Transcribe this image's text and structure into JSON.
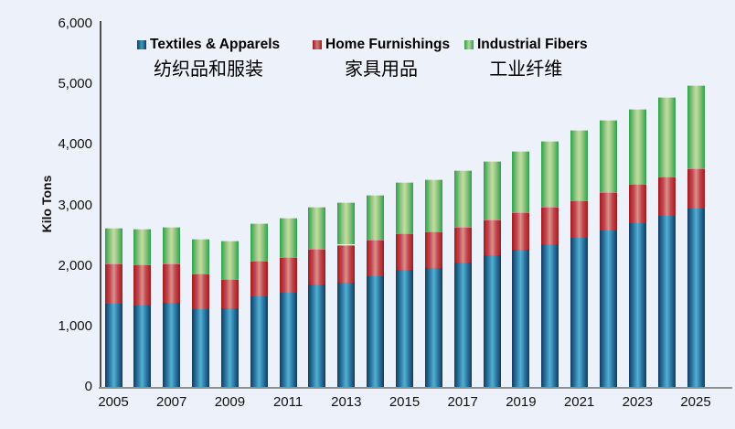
{
  "chart_data": {
    "type": "bar",
    "stacked": true,
    "title": "",
    "ylabel": "Kilo Tons",
    "xlabel": "",
    "grid": false,
    "legend_position": "top",
    "ylim": [
      0,
      6000
    ],
    "yticks": [
      0,
      1000,
      2000,
      3000,
      4000,
      5000,
      6000
    ],
    "ytick_labels": [
      "0",
      "1,000",
      "2,000",
      "3,000",
      "4,000",
      "5,000",
      "6,000"
    ],
    "categories": [
      "2005",
      "2006",
      "2007",
      "2008",
      "2009",
      "2010",
      "2011",
      "2012",
      "2013",
      "2014",
      "2015",
      "2016",
      "2017",
      "2018",
      "2019",
      "2020",
      "2021",
      "2022",
      "2023",
      "2024",
      "2025"
    ],
    "xtick_labels_shown": [
      "2005",
      "2007",
      "2009",
      "2011",
      "2013",
      "2015",
      "2017",
      "2019",
      "2021",
      "2023",
      "2025"
    ],
    "series": [
      {
        "name": "Textiles & Apparels",
        "name_zh": "纺织品和服装",
        "color": "#2d7ca6",
        "values": [
          1370,
          1350,
          1390,
          1290,
          1300,
          1490,
          1560,
          1690,
          1730,
          1830,
          1940,
          1970,
          2060,
          2170,
          2260,
          2360,
          2470,
          2580,
          2710,
          2820,
          2950
        ]
      },
      {
        "name": "Home Furnishings",
        "name_zh": "家具用品",
        "color": "#c0272d",
        "values": [
          670,
          670,
          650,
          590,
          480,
          590,
          590,
          590,
          620,
          600,
          600,
          600,
          590,
          600,
          620,
          610,
          620,
          640,
          640,
          650,
          660
        ]
      },
      {
        "name": "Industrial Fibers",
        "name_zh": "工业纤维",
        "color": "#4bae4f",
        "values": [
          590,
          590,
          600,
          570,
          640,
          630,
          650,
          700,
          710,
          740,
          840,
          860,
          930,
          960,
          1020,
          1100,
          1150,
          1190,
          1240,
          1320,
          1370
        ]
      }
    ],
    "totals": [
      2630,
      2610,
      2640,
      2450,
      2420,
      2710,
      2800,
      2980,
      3060,
      3170,
      3380,
      3430,
      3580,
      3730,
      3900,
      4070,
      4240,
      4410,
      4590,
      4790,
      4980
    ]
  },
  "colors": {
    "background": "#edf1f9",
    "y_axis_line": "#4d4d4d",
    "x_axis_line": "#8f8f8f",
    "text": "#111111"
  }
}
